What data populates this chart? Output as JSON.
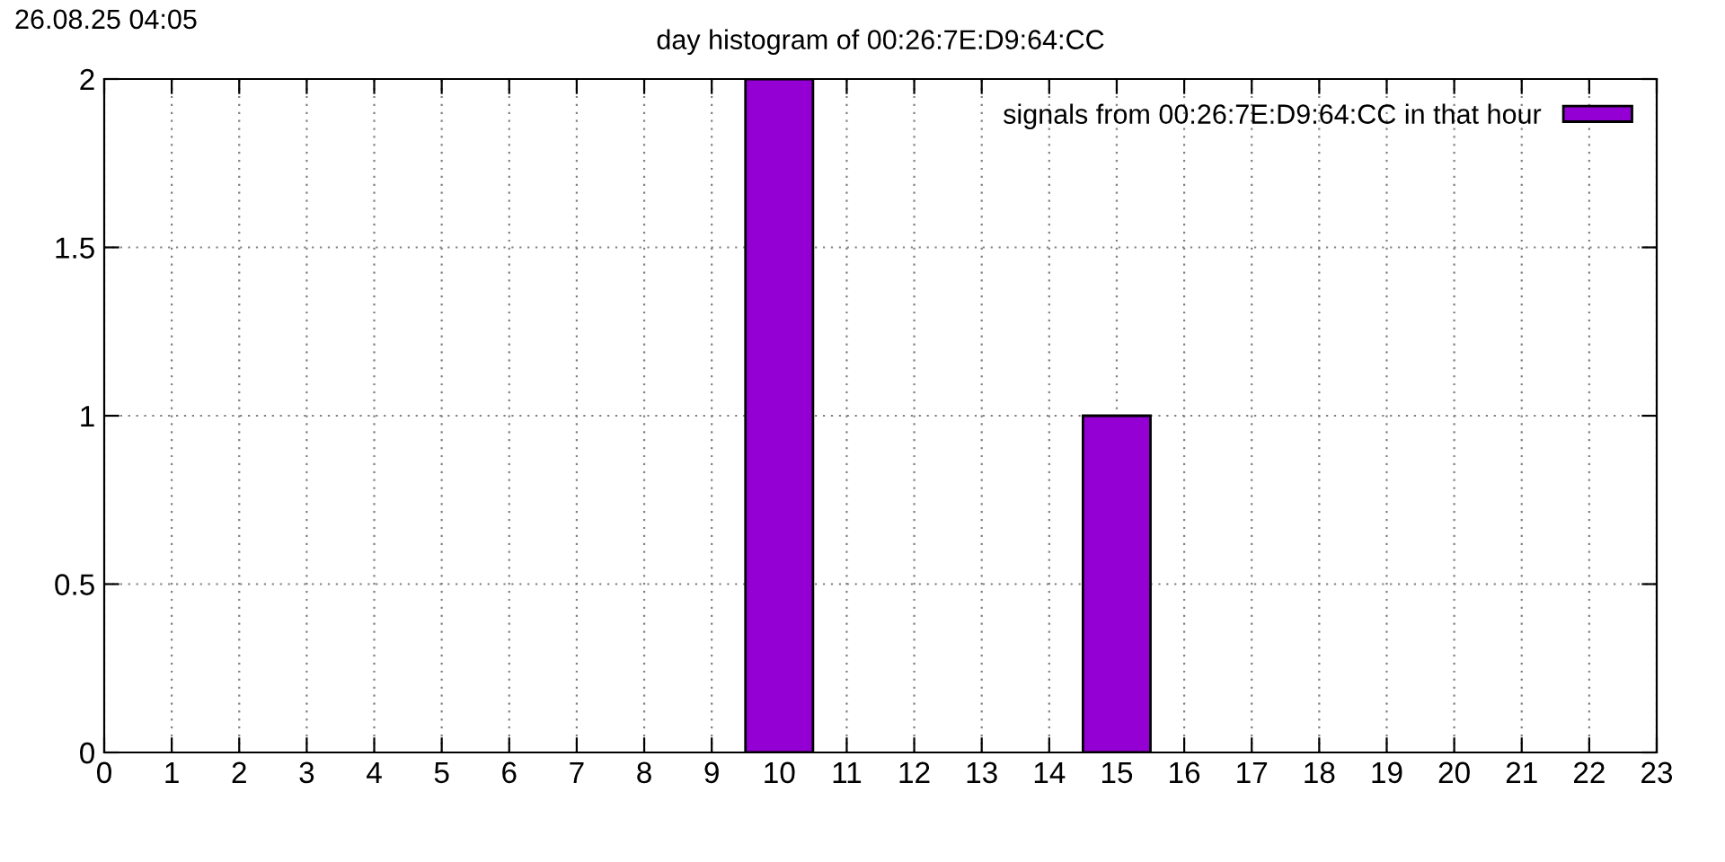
{
  "chart_data": {
    "type": "bar",
    "title": "day histogram of 00:26:7E:D9:64:CC",
    "annotations": [
      "26.08.25 04:05"
    ],
    "x": [
      10,
      15
    ],
    "series": [
      {
        "name": "signals from 00:26:7E:D9:64:CC in that hour",
        "color": "#9400d3",
        "values": [
          2,
          1
        ]
      }
    ],
    "xlim": [
      0,
      23
    ],
    "xticks": [
      0,
      1,
      2,
      3,
      4,
      5,
      6,
      7,
      8,
      9,
      10,
      11,
      12,
      13,
      14,
      15,
      16,
      17,
      18,
      19,
      20,
      21,
      22,
      23
    ],
    "ylim": [
      0,
      2
    ],
    "yticks": [
      0,
      0.5,
      1,
      1.5,
      2
    ],
    "grid": true,
    "legend": "top right"
  }
}
